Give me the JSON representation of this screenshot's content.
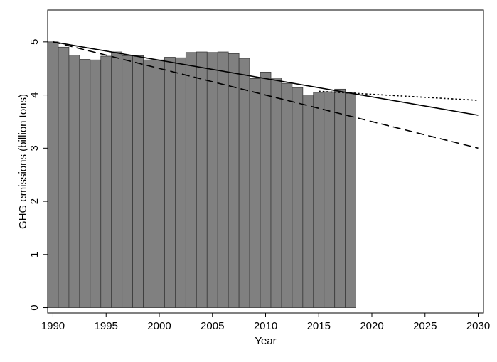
{
  "chart_data": {
    "type": "bar",
    "title": "",
    "xlabel": "Year",
    "ylabel": "GHG emissions (billion tons)",
    "xlim": [
      1989.5,
      2030.5
    ],
    "ylim": [
      -0.1,
      5.6
    ],
    "grid": false,
    "x_ticks": [
      1990,
      1995,
      2000,
      2005,
      2010,
      2015,
      2020,
      2025,
      2030
    ],
    "y_ticks": [
      0,
      1,
      2,
      3,
      4,
      5
    ],
    "bar_color": "#808080",
    "bars": {
      "years": [
        1990,
        1991,
        1992,
        1993,
        1994,
        1995,
        1996,
        1997,
        1998,
        1999,
        2000,
        2001,
        2002,
        2003,
        2004,
        2005,
        2006,
        2007,
        2008,
        2009,
        2010,
        2011,
        2012,
        2013,
        2014,
        2015,
        2016,
        2017,
        2018
      ],
      "values": [
        5.0,
        4.9,
        4.75,
        4.67,
        4.66,
        4.73,
        4.81,
        4.74,
        4.74,
        4.66,
        4.66,
        4.71,
        4.7,
        4.8,
        4.81,
        4.8,
        4.81,
        4.78,
        4.69,
        4.31,
        4.43,
        4.32,
        4.22,
        4.14,
        4.0,
        4.05,
        4.06,
        4.11,
        4.05
      ]
    },
    "lines": [
      {
        "style": "solid",
        "x": [
          1990,
          2030
        ],
        "y": [
          5.0,
          3.62
        ]
      },
      {
        "style": "dashed",
        "x": [
          1990,
          2030
        ],
        "y": [
          5.0,
          3.0
        ]
      },
      {
        "style": "dotted",
        "x": [
          2015,
          2030
        ],
        "y": [
          4.07,
          3.9
        ]
      }
    ]
  }
}
